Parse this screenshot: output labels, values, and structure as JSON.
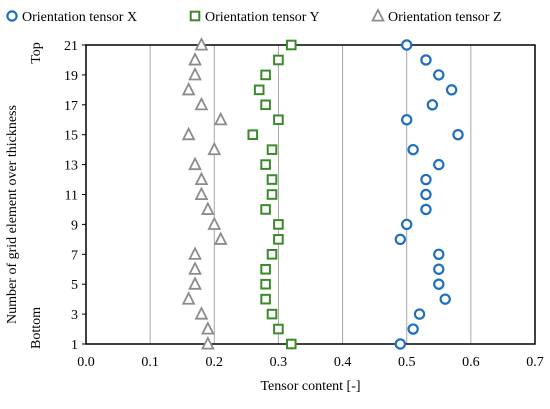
{
  "chart_data": {
    "type": "scatter",
    "title": "",
    "xlabel": "Tensor content [-]",
    "ylabel": "Number of grid element over thickness",
    "xlim": [
      0.0,
      0.7
    ],
    "ylim": [
      1,
      21
    ],
    "x_ticks": [
      "0.0",
      "0.1",
      "0.2",
      "0.3",
      "0.4",
      "0.5",
      "0.6",
      "0.7"
    ],
    "y_ticks": [
      "1",
      "3",
      "5",
      "7",
      "9",
      "11",
      "13",
      "15",
      "17",
      "19",
      "21"
    ],
    "y_side_labels": {
      "top": "Top",
      "bottom": "Bottom"
    },
    "grid": "vertical",
    "legend_position": "top",
    "series": [
      {
        "name": "Orientation tensor X",
        "marker": "circle",
        "color": "#1f6fbf",
        "points": [
          {
            "x": 0.49,
            "y": 1
          },
          {
            "x": 0.51,
            "y": 2
          },
          {
            "x": 0.52,
            "y": 3
          },
          {
            "x": 0.56,
            "y": 4
          },
          {
            "x": 0.55,
            "y": 5
          },
          {
            "x": 0.55,
            "y": 6
          },
          {
            "x": 0.55,
            "y": 7
          },
          {
            "x": 0.49,
            "y": 8
          },
          {
            "x": 0.5,
            "y": 9
          },
          {
            "x": 0.53,
            "y": 10
          },
          {
            "x": 0.53,
            "y": 11
          },
          {
            "x": 0.53,
            "y": 12
          },
          {
            "x": 0.55,
            "y": 13
          },
          {
            "x": 0.51,
            "y": 14
          },
          {
            "x": 0.58,
            "y": 15
          },
          {
            "x": 0.5,
            "y": 16
          },
          {
            "x": 0.54,
            "y": 17
          },
          {
            "x": 0.57,
            "y": 18
          },
          {
            "x": 0.55,
            "y": 19
          },
          {
            "x": 0.53,
            "y": 20
          },
          {
            "x": 0.5,
            "y": 21
          }
        ]
      },
      {
        "name": "Orientation tensor Y",
        "marker": "square",
        "color": "#3a8a2a",
        "points": [
          {
            "x": 0.32,
            "y": 1
          },
          {
            "x": 0.3,
            "y": 2
          },
          {
            "x": 0.29,
            "y": 3
          },
          {
            "x": 0.28,
            "y": 4
          },
          {
            "x": 0.28,
            "y": 5
          },
          {
            "x": 0.28,
            "y": 6
          },
          {
            "x": 0.29,
            "y": 7
          },
          {
            "x": 0.3,
            "y": 8
          },
          {
            "x": 0.3,
            "y": 9
          },
          {
            "x": 0.28,
            "y": 10
          },
          {
            "x": 0.29,
            "y": 11
          },
          {
            "x": 0.29,
            "y": 12
          },
          {
            "x": 0.28,
            "y": 13
          },
          {
            "x": 0.29,
            "y": 14
          },
          {
            "x": 0.26,
            "y": 15
          },
          {
            "x": 0.3,
            "y": 16
          },
          {
            "x": 0.28,
            "y": 17
          },
          {
            "x": 0.27,
            "y": 18
          },
          {
            "x": 0.28,
            "y": 19
          },
          {
            "x": 0.3,
            "y": 20
          },
          {
            "x": 0.32,
            "y": 21
          }
        ]
      },
      {
        "name": "Orientation tensor Z",
        "marker": "triangle",
        "color": "#8c8c8c",
        "points": [
          {
            "x": 0.19,
            "y": 1
          },
          {
            "x": 0.19,
            "y": 2
          },
          {
            "x": 0.18,
            "y": 3
          },
          {
            "x": 0.16,
            "y": 4
          },
          {
            "x": 0.17,
            "y": 5
          },
          {
            "x": 0.17,
            "y": 6
          },
          {
            "x": 0.17,
            "y": 7
          },
          {
            "x": 0.21,
            "y": 8
          },
          {
            "x": 0.2,
            "y": 9
          },
          {
            "x": 0.19,
            "y": 10
          },
          {
            "x": 0.18,
            "y": 11
          },
          {
            "x": 0.18,
            "y": 12
          },
          {
            "x": 0.17,
            "y": 13
          },
          {
            "x": 0.2,
            "y": 14
          },
          {
            "x": 0.16,
            "y": 15
          },
          {
            "x": 0.21,
            "y": 16
          },
          {
            "x": 0.18,
            "y": 17
          },
          {
            "x": 0.16,
            "y": 18
          },
          {
            "x": 0.17,
            "y": 19
          },
          {
            "x": 0.17,
            "y": 20
          },
          {
            "x": 0.18,
            "y": 21
          }
        ]
      }
    ]
  }
}
